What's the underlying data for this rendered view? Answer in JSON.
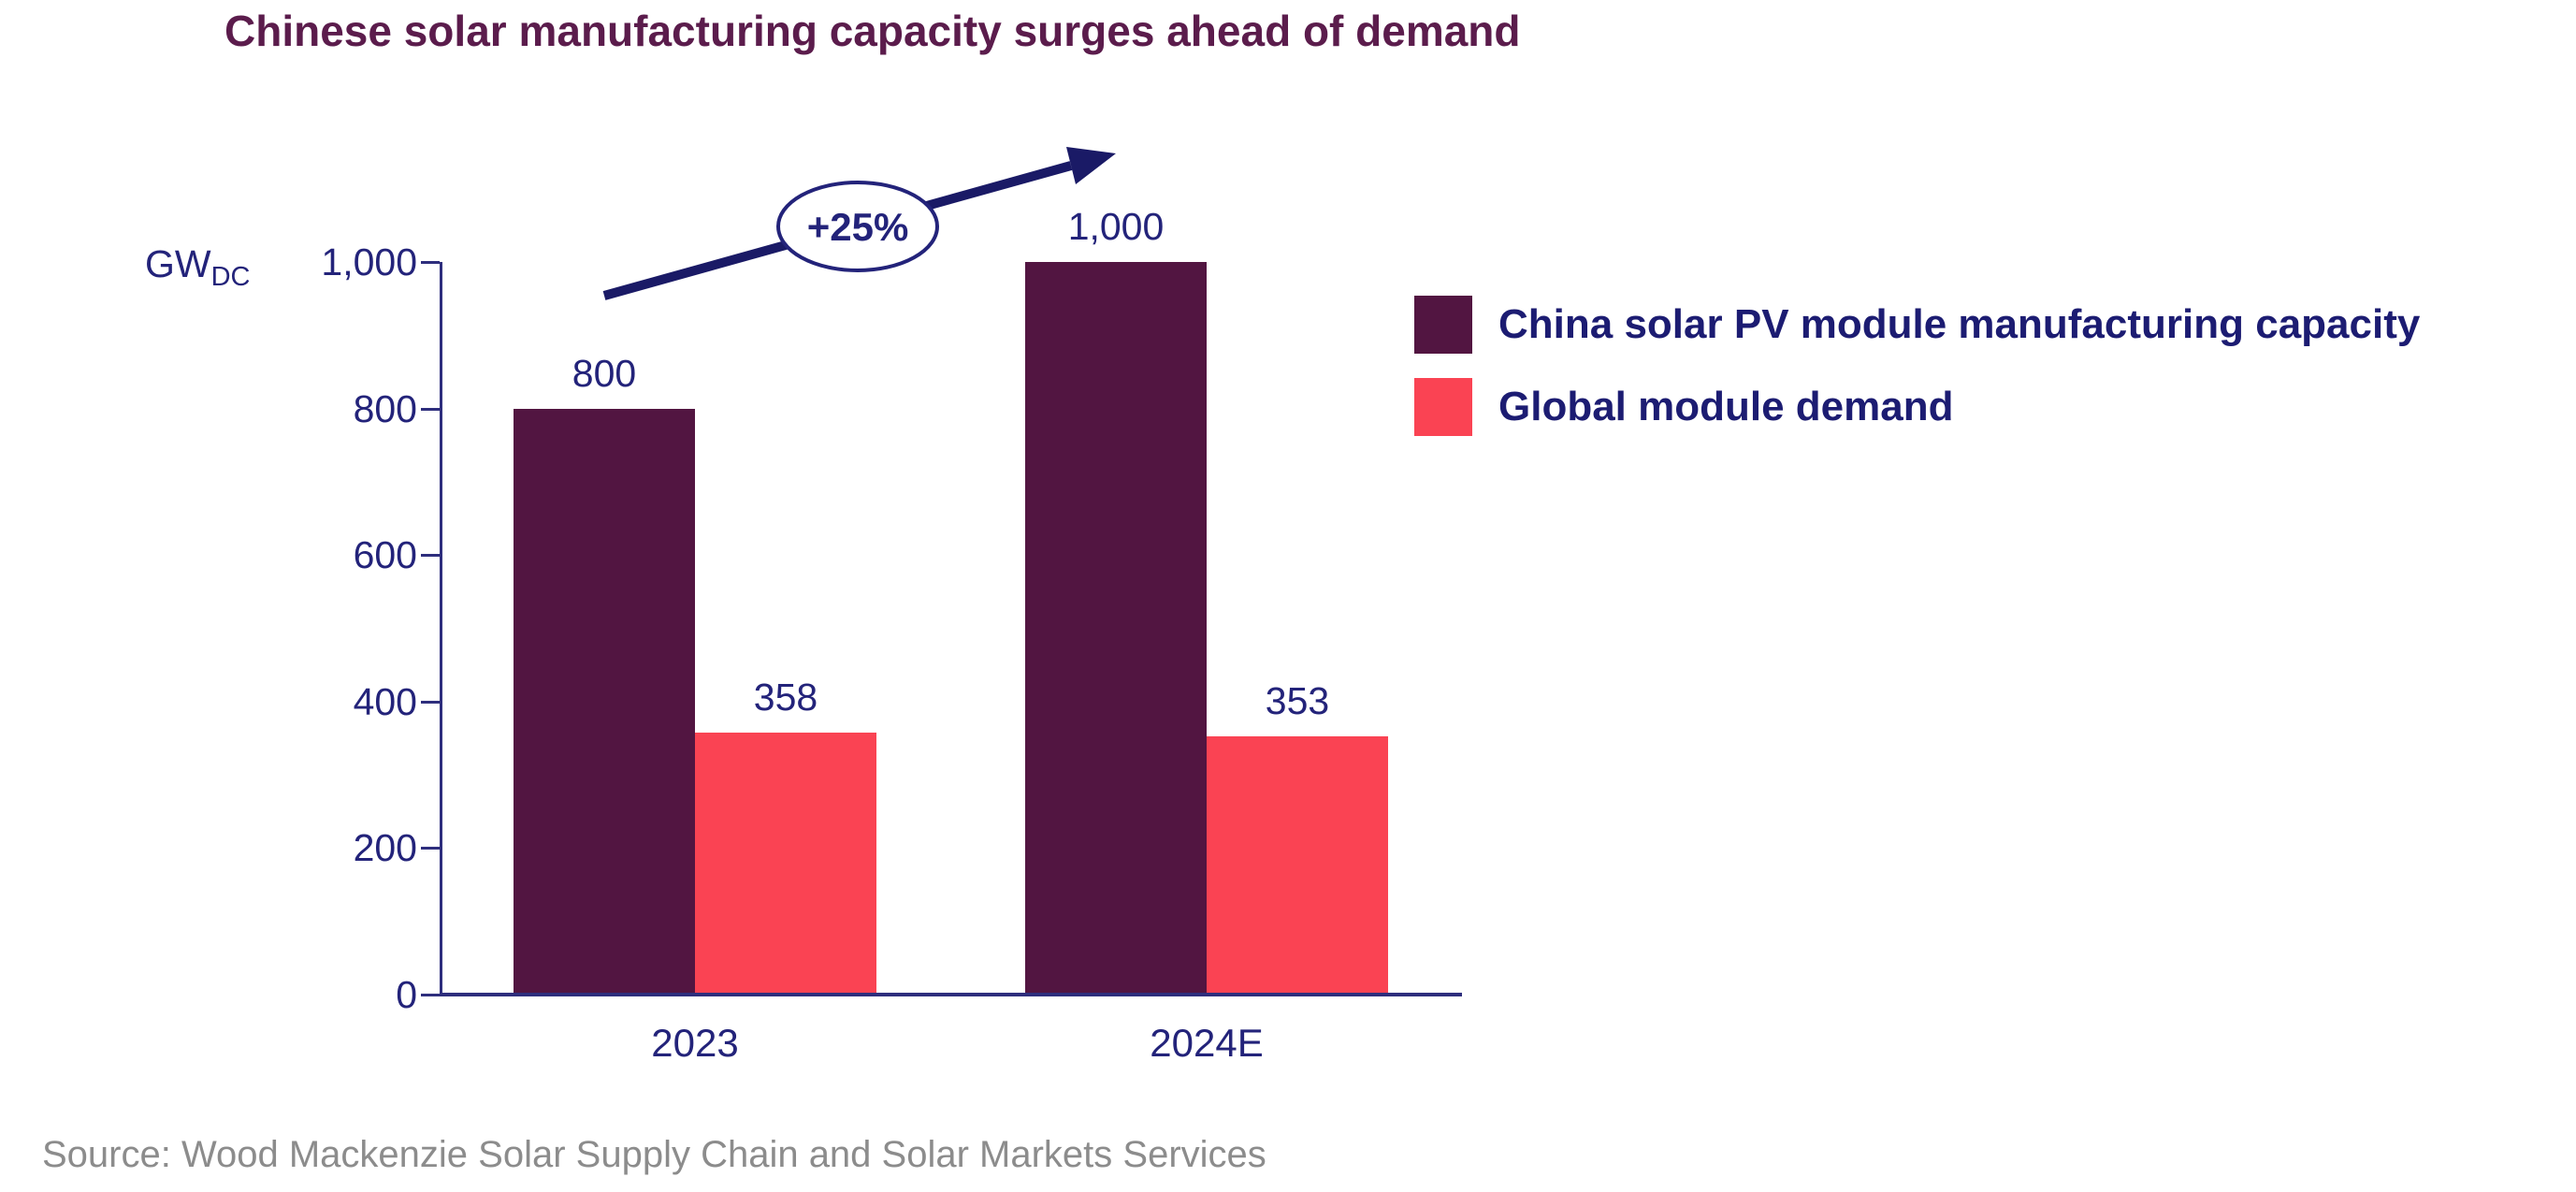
{
  "title": {
    "text": "Chinese solar manufacturing capacity surges ahead of demand",
    "color": "#5b1c4c"
  },
  "unit_label": {
    "base": "GW",
    "subscript": "DC"
  },
  "growth_annotation": {
    "text": "+25%"
  },
  "legend": {
    "items": [
      {
        "label": "China solar PV module manufacturing capacity",
        "color": "#521541"
      },
      {
        "label": "Global module demand",
        "color": "#fa4353"
      }
    ]
  },
  "source": {
    "text": "Source: Wood Mackenzie Solar Supply Chain and Solar Markets Services"
  },
  "chart_data": {
    "type": "bar",
    "title": "Chinese solar manufacturing capacity surges ahead of demand",
    "categories": [
      "2023",
      "2024E"
    ],
    "series": [
      {
        "name": "China solar PV module manufacturing capacity",
        "color": "#521541",
        "values": [
          800,
          1000
        ],
        "value_labels": [
          "800",
          "1,000"
        ]
      },
      {
        "name": "Global module demand",
        "color": "#fa4353",
        "values": [
          358,
          353
        ],
        "value_labels": [
          "358",
          "353"
        ]
      }
    ],
    "ylabel": "GWDC",
    "ylim": [
      0,
      1000
    ],
    "yticks": [
      0,
      200,
      400,
      600,
      800,
      1000
    ],
    "ytick_labels": [
      "0",
      "200",
      "400",
      "600",
      "800",
      "1,000"
    ],
    "grid": false,
    "legend_position": "right",
    "annotation": {
      "text": "+25%",
      "type": "growth-arrow",
      "series": "China solar PV module manufacturing capacity",
      "from_category": "2023",
      "to_category": "2024E"
    }
  },
  "colors": {
    "axis": "#2e2e7d",
    "text_navy": "#23237a",
    "legend_text_navy": "#1c1c72",
    "arrow_navy": "#1a1a66",
    "title_plum": "#5b1c4c",
    "bar_dark_plum": "#521541",
    "bar_red": "#fa4353",
    "source_gray": "#8c8c8c",
    "background": "#ffffff"
  }
}
